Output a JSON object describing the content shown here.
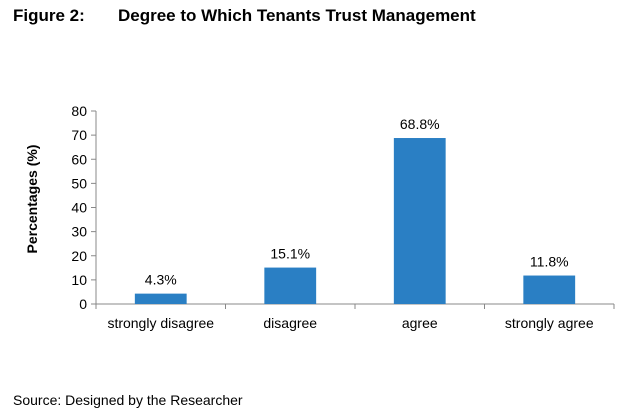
{
  "figure": {
    "number": "Figure 2:",
    "title": "Degree to Which Tenants Trust Management"
  },
  "source": "Source: Designed by the Researcher",
  "chart_data": {
    "type": "bar",
    "title": "Degree to Which Tenants Trust Management",
    "xlabel": "",
    "ylabel": "Percentages (%)",
    "categories": [
      "strongly disagree",
      "disagree",
      "agree",
      "strongly agree"
    ],
    "values": [
      4.3,
      15.1,
      68.8,
      11.8
    ],
    "data_labels": [
      "4.3%",
      "15.1%",
      "68.8%",
      "11.8%"
    ],
    "ylim": [
      0,
      80
    ],
    "yticks": [
      0,
      10,
      20,
      30,
      40,
      50,
      60,
      70,
      80
    ],
    "bar_color": "#2a7fc4",
    "grid": false,
    "legend": "none"
  }
}
